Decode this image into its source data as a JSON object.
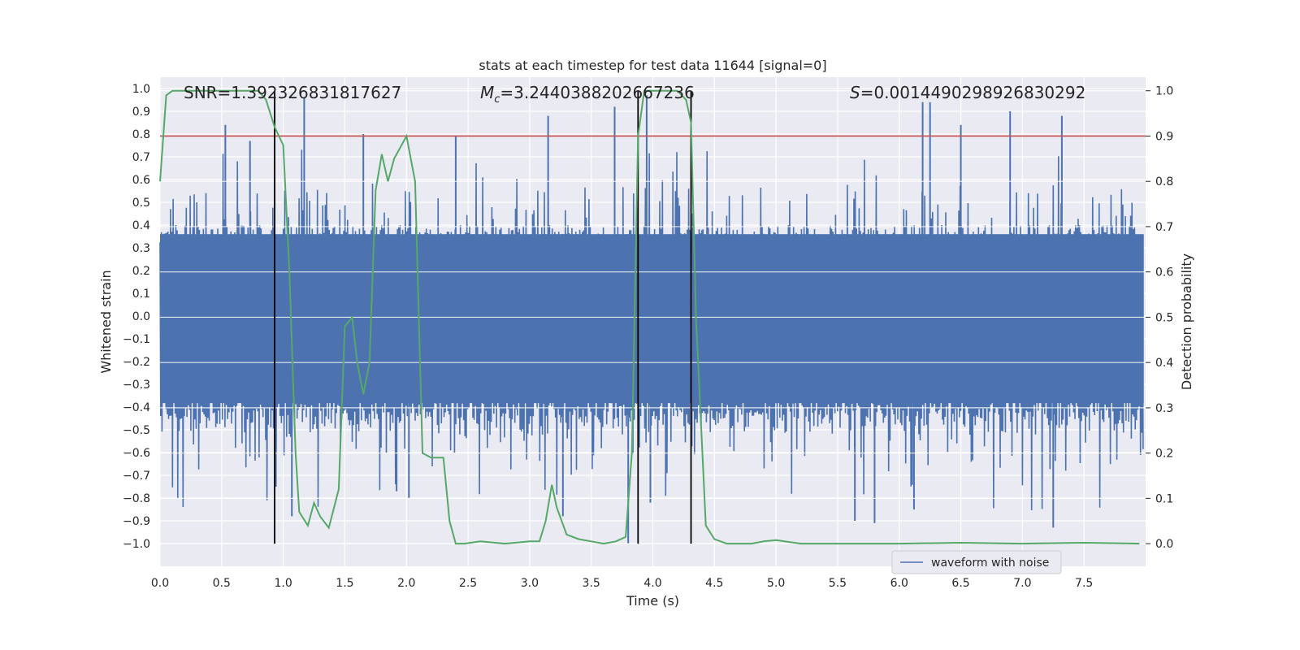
{
  "chart_data": {
    "type": "line",
    "title": "stats at each timestep for test data 11644 [signal=0]",
    "xlabel": "Time (s)",
    "ylabel_left": "Whitened strain",
    "ylabel_right": "Detection probability",
    "xlim": [
      0.0,
      8.0
    ],
    "ylim_left": [
      -1.1,
      1.05
    ],
    "ylim_right": [
      -0.05,
      1.03
    ],
    "x_ticks": [
      0.0,
      0.5,
      1.0,
      1.5,
      2.0,
      2.5,
      3.0,
      3.5,
      4.0,
      4.5,
      5.0,
      5.5,
      6.0,
      6.5,
      7.0,
      7.5
    ],
    "x_tick_labels": [
      "0.0",
      "0.5",
      "1.0",
      "1.5",
      "2.0",
      "2.5",
      "3.0",
      "3.5",
      "4.0",
      "4.5",
      "5.0",
      "5.5",
      "6.0",
      "6.5",
      "7.0",
      "7.5"
    ],
    "y_left_ticks": [
      1.0,
      0.9,
      0.8,
      0.7,
      0.6,
      0.5,
      0.4,
      0.3,
      0.2,
      0.1,
      0.0,
      -0.1,
      -0.2,
      -0.3,
      -0.4,
      -0.5,
      -0.6,
      -0.7,
      -0.8,
      -0.9,
      -1.0
    ],
    "y_left_tick_labels": [
      "1.0",
      "0.9",
      "0.8",
      "0.7",
      "0.6",
      "0.5",
      "0.4",
      "0.3",
      "0.2",
      "0.1",
      "0.0",
      "−0.1",
      "−0.2",
      "−0.3",
      "−0.4",
      "−0.5",
      "−0.6",
      "−0.7",
      "−0.8",
      "−0.9",
      "−1.0"
    ],
    "y_right_ticks": [
      1.0,
      0.9,
      0.8,
      0.7,
      0.6,
      0.5,
      0.4,
      0.3,
      0.2,
      0.1,
      0.0
    ],
    "y_right_tick_labels": [
      "1.0",
      "0.9",
      "0.8",
      "0.7",
      "0.6",
      "0.5",
      "0.4",
      "0.3",
      "0.2",
      "0.1",
      "0.0"
    ],
    "grid": true,
    "legend_position": "lower-right",
    "legend": [
      {
        "label": "waveform with noise",
        "color": "#4c72b0"
      }
    ],
    "annotations": {
      "snr": "SNR=1.392326831817627",
      "mc_symbol": "M",
      "mc_sub": "c",
      "mc_value": "=3.2440388202667236",
      "s_symbol": "S",
      "s_value": "=0.0014490298926830292"
    },
    "vertical_lines_s": [
      0.93,
      3.88,
      4.31
    ],
    "threshold_probability": 0.9,
    "waveform": {
      "color": "#4c72b0",
      "description_envelope_upper": 0.4,
      "description_envelope_lower": -0.45,
      "peak_max_samples": [
        {
          "x": 0.53,
          "y": 0.84
        },
        {
          "x": 0.73,
          "y": 0.77
        },
        {
          "x": 1.17,
          "y": 0.96
        },
        {
          "x": 1.65,
          "y": 0.8
        },
        {
          "x": 2.4,
          "y": 0.79
        },
        {
          "x": 3.15,
          "y": 0.88
        },
        {
          "x": 3.69,
          "y": 0.92
        },
        {
          "x": 3.95,
          "y": 0.97
        },
        {
          "x": 6.19,
          "y": 0.94
        },
        {
          "x": 6.25,
          "y": 0.94
        },
        {
          "x": 6.5,
          "y": 0.84
        },
        {
          "x": 6.9,
          "y": 0.9
        },
        {
          "x": 7.32,
          "y": 0.88
        }
      ],
      "trough_min_samples": [
        {
          "x": 0.94,
          "y": -0.75
        },
        {
          "x": 1.07,
          "y": -0.88
        },
        {
          "x": 1.92,
          "y": -0.77
        },
        {
          "x": 2.02,
          "y": -0.8
        },
        {
          "x": 3.27,
          "y": -0.88
        },
        {
          "x": 3.8,
          "y": -1.0
        },
        {
          "x": 3.98,
          "y": -0.82
        },
        {
          "x": 5.64,
          "y": -0.9
        },
        {
          "x": 5.8,
          "y": -0.91
        },
        {
          "x": 6.12,
          "y": -0.85
        },
        {
          "x": 7.25,
          "y": -0.93
        }
      ]
    },
    "probability_series": {
      "name": "",
      "color": "#55a868",
      "x": [
        0.0,
        0.05,
        0.1,
        0.2,
        0.4,
        0.6,
        0.8,
        0.86,
        0.93,
        1.0,
        1.05,
        1.1,
        1.13,
        1.2,
        1.25,
        1.3,
        1.37,
        1.45,
        1.5,
        1.56,
        1.6,
        1.65,
        1.7,
        1.75,
        1.8,
        1.85,
        1.9,
        2.0,
        2.07,
        2.13,
        2.2,
        2.3,
        2.35,
        2.4,
        2.47,
        2.6,
        2.8,
        3.0,
        3.08,
        3.13,
        3.18,
        3.22,
        3.3,
        3.4,
        3.5,
        3.6,
        3.7,
        3.78,
        3.83,
        3.88,
        3.93,
        4.0,
        4.2,
        4.27,
        4.31,
        4.35,
        4.43,
        4.5,
        4.6,
        4.8,
        4.9,
        5.0,
        5.2,
        5.5,
        6.0,
        6.5,
        7.0,
        7.5,
        7.95
      ],
      "y": [
        0.8,
        0.99,
        1.0,
        1.0,
        1.0,
        1.0,
        1.0,
        0.98,
        0.92,
        0.88,
        0.6,
        0.2,
        0.07,
        0.04,
        0.09,
        0.06,
        0.035,
        0.12,
        0.48,
        0.5,
        0.4,
        0.33,
        0.4,
        0.78,
        0.86,
        0.8,
        0.85,
        0.9,
        0.8,
        0.2,
        0.19,
        0.19,
        0.05,
        0.0,
        0.0,
        0.005,
        0.0,
        0.005,
        0.005,
        0.05,
        0.13,
        0.08,
        0.02,
        0.01,
        0.005,
        0.0,
        0.005,
        0.015,
        0.2,
        0.9,
        1.0,
        1.0,
        1.0,
        0.98,
        0.93,
        0.5,
        0.04,
        0.01,
        0.0,
        0.0,
        0.005,
        0.008,
        0.0,
        0.0,
        0.0,
        0.002,
        0.0,
        0.002,
        0.0
      ]
    }
  }
}
